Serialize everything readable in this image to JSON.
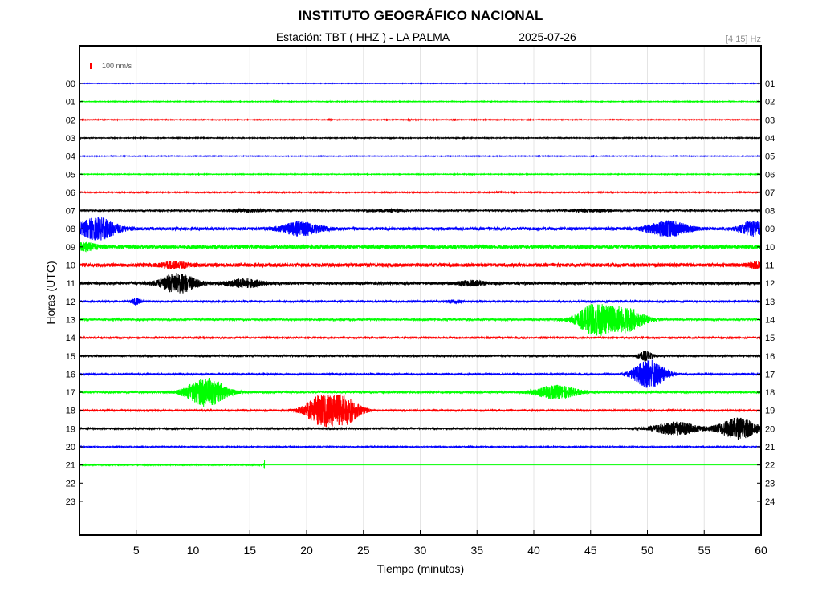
{
  "chart_data": {
    "type": "line",
    "title": "INSTITUTO GEOGRÁFICO NACIONAL",
    "station_label": "Estación:  TBT ( HHZ ) - LA PALMA",
    "date": "2025-07-26",
    "filter": "[4 15] Hz",
    "scale_label": "100 nm/s",
    "scale_color": "#ff0000",
    "xlabel": "Tiempo (minutos)",
    "ylabel": "Horas (UTC)",
    "xlim": [
      0,
      60
    ],
    "x_ticks": [
      5,
      10,
      15,
      20,
      25,
      30,
      35,
      40,
      45,
      50,
      55,
      60
    ],
    "grid": true,
    "left_hours": [
      "00",
      "01",
      "02",
      "03",
      "04",
      "05",
      "06",
      "07",
      "08",
      "09",
      "10",
      "11",
      "12",
      "13",
      "14",
      "15",
      "16",
      "17",
      "18",
      "19",
      "20",
      "21",
      "22",
      "23"
    ],
    "right_hours": [
      "01",
      "02",
      "03",
      "04",
      "05",
      "06",
      "07",
      "08",
      "09",
      "10",
      "11",
      "12",
      "13",
      "14",
      "15",
      "16",
      "17",
      "18",
      "19",
      "20",
      "21",
      "22",
      "23",
      "24"
    ],
    "series": [
      {
        "hour": "00",
        "color": "#0000ff",
        "noise": 0.25,
        "end_minute": 60,
        "events": []
      },
      {
        "hour": "01",
        "color": "#00ff00",
        "noise": 0.35,
        "end_minute": 60,
        "events": [
          {
            "minute": 17.2,
            "amplitude": 1.0,
            "duration": 0.3
          }
        ]
      },
      {
        "hour": "02",
        "color": "#ff0000",
        "noise": 0.35,
        "end_minute": 60,
        "events": [
          {
            "minute": 22.0,
            "amplitude": 1.2,
            "duration": 0.2
          },
          {
            "minute": 29.0,
            "amplitude": 1.0,
            "duration": 0.2
          },
          {
            "minute": 33.0,
            "amplitude": 1.2,
            "duration": 0.2
          }
        ]
      },
      {
        "hour": "03",
        "color": "#000000",
        "noise": 0.4,
        "end_minute": 60,
        "events": []
      },
      {
        "hour": "04",
        "color": "#0000ff",
        "noise": 0.3,
        "end_minute": 60,
        "events": []
      },
      {
        "hour": "05",
        "color": "#00ff00",
        "noise": 0.35,
        "end_minute": 60,
        "events": [
          {
            "minute": 34.5,
            "amplitude": 1.0,
            "duration": 0.2
          }
        ]
      },
      {
        "hour": "06",
        "color": "#ff0000",
        "noise": 0.45,
        "end_minute": 60,
        "events": [
          {
            "minute": 37.0,
            "amplitude": 1.0,
            "duration": 0.5
          }
        ]
      },
      {
        "hour": "07",
        "color": "#000000",
        "noise": 0.9,
        "end_minute": 60,
        "events": [
          {
            "minute": 15.0,
            "amplitude": 1.5,
            "duration": 2.0
          },
          {
            "minute": 27.0,
            "amplitude": 1.3,
            "duration": 2.0
          },
          {
            "minute": 45.0,
            "amplitude": 1.3,
            "duration": 3.0
          }
        ]
      },
      {
        "hour": "08",
        "color": "#0000ff",
        "noise": 1.8,
        "end_minute": 60,
        "events": [
          {
            "minute": 1.6,
            "amplitude": 13,
            "duration": 2.2
          },
          {
            "minute": 19.5,
            "amplitude": 8,
            "duration": 2.2
          },
          {
            "minute": 51.8,
            "amplitude": 9,
            "duration": 2.3
          },
          {
            "minute": 59.3,
            "amplitude": 9,
            "duration": 1.5
          }
        ]
      },
      {
        "hour": "09",
        "color": "#00ff00",
        "noise": 2.2,
        "end_minute": 60,
        "events": [
          {
            "minute": 0.5,
            "amplitude": 4,
            "duration": 1.5
          }
        ]
      },
      {
        "hour": "10",
        "color": "#ff0000",
        "noise": 2.2,
        "end_minute": 60,
        "events": [
          {
            "minute": 8.5,
            "amplitude": 3.5,
            "duration": 1.5
          },
          {
            "minute": 59.5,
            "amplitude": 3,
            "duration": 0.8
          }
        ]
      },
      {
        "hour": "11",
        "color": "#000000",
        "noise": 1.6,
        "end_minute": 60,
        "events": [
          {
            "minute": 8.7,
            "amplitude": 12,
            "duration": 2.0
          },
          {
            "minute": 14.5,
            "amplitude": 5,
            "duration": 2.0
          },
          {
            "minute": 34.5,
            "amplitude": 3,
            "duration": 1.5
          }
        ]
      },
      {
        "hour": "12",
        "color": "#0000ff",
        "noise": 1.0,
        "end_minute": 60,
        "events": [
          {
            "minute": 5.0,
            "amplitude": 4,
            "duration": 0.5
          },
          {
            "minute": 33.0,
            "amplitude": 1.5,
            "duration": 1.0
          }
        ]
      },
      {
        "hour": "13",
        "color": "#00ff00",
        "noise": 1.2,
        "end_minute": 60,
        "events": [
          {
            "minute": 45.3,
            "amplitude": 18,
            "duration": 2.0
          },
          {
            "minute": 48.0,
            "amplitude": 15,
            "duration": 2.2
          }
        ]
      },
      {
        "hour": "14",
        "color": "#ff0000",
        "noise": 0.9,
        "end_minute": 60,
        "events": []
      },
      {
        "hour": "15",
        "color": "#000000",
        "noise": 0.9,
        "end_minute": 60,
        "events": [
          {
            "minute": 49.8,
            "amplitude": 6,
            "duration": 0.8
          }
        ]
      },
      {
        "hour": "16",
        "color": "#0000ff",
        "noise": 0.9,
        "end_minute": 60,
        "events": [
          {
            "minute": 50.2,
            "amplitude": 18,
            "duration": 1.8
          }
        ]
      },
      {
        "hour": "17",
        "color": "#00ff00",
        "noise": 1.0,
        "end_minute": 60,
        "events": [
          {
            "minute": 11.2,
            "amplitude": 18,
            "duration": 2.2
          },
          {
            "minute": 42.0,
            "amplitude": 8,
            "duration": 2.5
          }
        ]
      },
      {
        "hour": "18",
        "color": "#ff0000",
        "noise": 0.9,
        "end_minute": 60,
        "events": [
          {
            "minute": 21.2,
            "amplitude": 17,
            "duration": 1.8
          },
          {
            "minute": 23.3,
            "amplitude": 17,
            "duration": 1.8
          }
        ]
      },
      {
        "hour": "19",
        "color": "#000000",
        "noise": 0.9,
        "end_minute": 60,
        "events": [
          {
            "minute": 52.5,
            "amplitude": 8,
            "duration": 2.5
          },
          {
            "minute": 58.0,
            "amplitude": 13,
            "duration": 2.2
          }
        ]
      },
      {
        "hour": "20",
        "color": "#0000ff",
        "noise": 0.5,
        "end_minute": 60,
        "events": []
      },
      {
        "hour": "21",
        "color": "#00ff00",
        "noise": 0.45,
        "end_minute": 16.3,
        "events": [
          {
            "minute": 16.3,
            "amplitude": 6,
            "duration": 0.08
          }
        ]
      },
      {
        "hour": "22",
        "color": "#00ff00",
        "noise": 0,
        "end_minute": 0,
        "events": []
      },
      {
        "hour": "23",
        "color": "#00ff00",
        "noise": 0,
        "end_minute": 0,
        "events": []
      }
    ],
    "flat_after_end": {
      "hour": "21",
      "from_minute": 16.3,
      "to_minute": 60
    }
  }
}
